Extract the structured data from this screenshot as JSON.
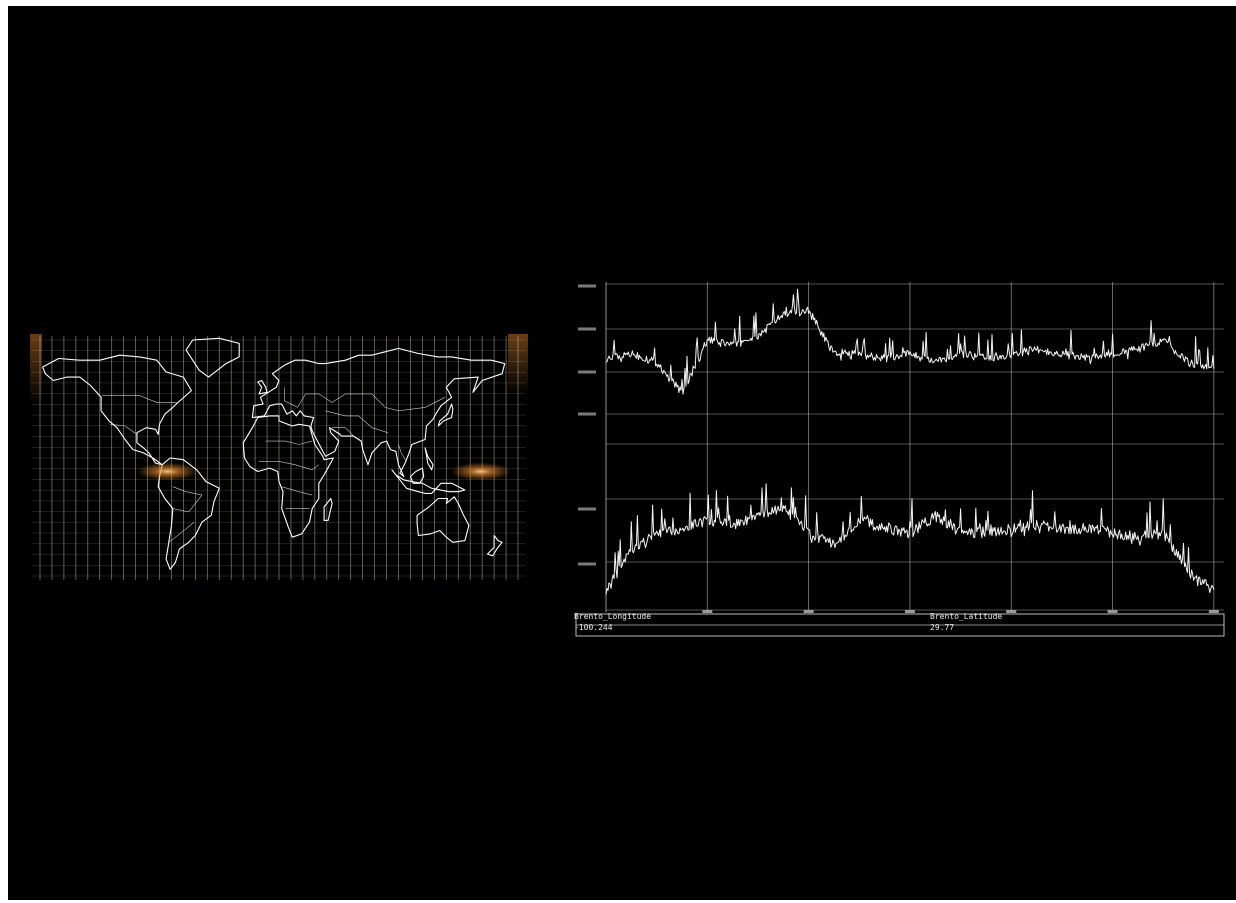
{
  "header": {
    "text": ""
  },
  "map": {
    "highlight_color": "#e8892f",
    "grid_color": "#f3ead8",
    "coast_color": "#ffffff",
    "glow_points": [
      {
        "name": "south-america-hotspot",
        "lon": -74,
        "lat": 4
      },
      {
        "name": "pacific-hotspot",
        "lon": 162,
        "lat": 4
      }
    ]
  },
  "readout": {
    "left_label": "Brento_Longitude",
    "left_value": "-100.244",
    "right_label": "Brento_Latitude",
    "right_value": "29.77"
  },
  "chart_data": [
    {
      "type": "line",
      "title": "",
      "series": [
        {
          "x": [
            0,
            50,
            100,
            150,
            200,
            250,
            300,
            350,
            400,
            450,
            500,
            550,
            600,
            650,
            700,
            750,
            800,
            850,
            900,
            950,
            1000,
            1050,
            1100,
            1150,
            1200
          ],
          "values": [
            -102,
            -101,
            -103,
            -110,
            -98,
            -99,
            -97,
            -92,
            -91,
            -101,
            -101,
            -102,
            -101,
            -103,
            -101,
            -102,
            -101,
            -100,
            -101,
            -102,
            -101,
            -100,
            -98,
            -103,
            -104
          ]
        }
      ],
      "ylim": [
        -115,
        -85
      ],
      "xlim": [
        0,
        1220
      ]
    },
    {
      "type": "line",
      "title": "",
      "series": [
        {
          "x": [
            0,
            50,
            100,
            150,
            200,
            250,
            300,
            350,
            400,
            450,
            500,
            550,
            600,
            650,
            700,
            750,
            800,
            850,
            900,
            950,
            1000,
            1050,
            1100,
            1150,
            1200
          ],
          "values": [
            10,
            20,
            24,
            25,
            27,
            26,
            28,
            30,
            24,
            21,
            27,
            25,
            24,
            28,
            24,
            24,
            25,
            26,
            25,
            25,
            24,
            23,
            24,
            15,
            10
          ]
        }
      ],
      "ylim": [
        5,
        45
      ],
      "xlim": [
        0,
        1220
      ]
    }
  ]
}
